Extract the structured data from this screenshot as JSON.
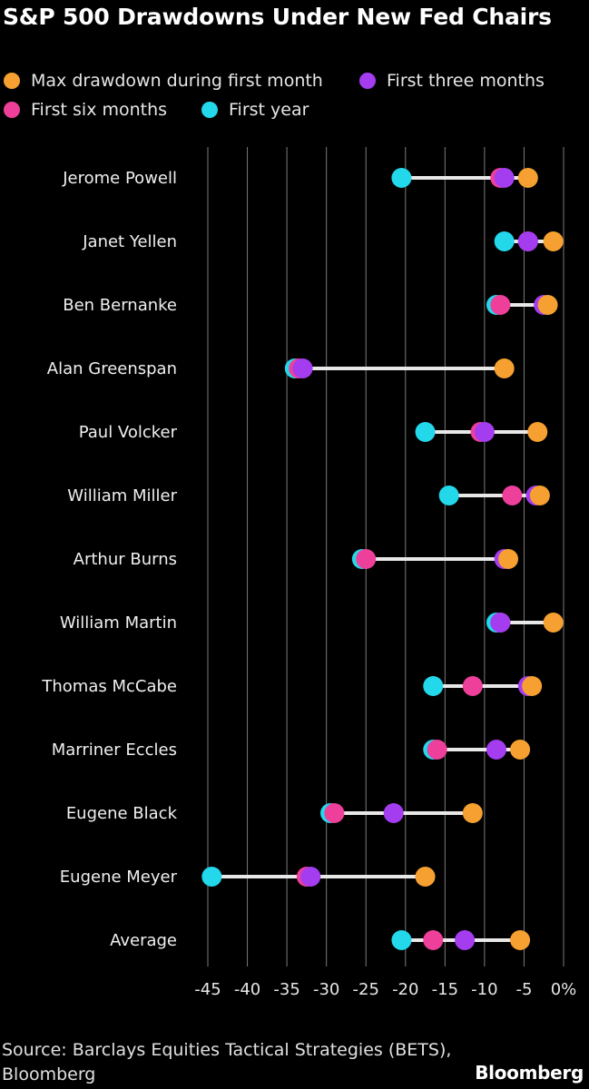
{
  "title": "S&P 500 Drawdowns Under New Fed Chairs",
  "legend": [
    {
      "label": "Max drawdown during first month",
      "color": "#f5a030"
    },
    {
      "label": "First three months",
      "color": "#a43cf0"
    },
    {
      "label": "First six months",
      "color": "#ee3f9a"
    },
    {
      "label": "First year",
      "color": "#22d8ea"
    }
  ],
  "source": "Source: Barclays Equities Tactical Strategies (BETS), Bloomberg",
  "brand": "Bloomberg",
  "chart_data": {
    "type": "dot-range",
    "title": "S&P 500 Drawdowns Under New Fed Chairs",
    "xlim": [
      -47,
      0
    ],
    "xticks": [
      -45,
      -40,
      -35,
      -30,
      -25,
      -20,
      -15,
      -10,
      -5,
      0
    ],
    "xtick_labels": [
      "-45",
      "-40",
      "-35",
      "-30",
      "-25",
      "-20",
      "-15",
      "-10",
      "-5",
      "0%"
    ],
    "grid": "vertical",
    "legend_position": "top",
    "categories": [
      "Jerome Powell",
      "Janet Yellen",
      "Ben Bernanke",
      "Alan Greenspan",
      "Paul Volcker",
      "William Miller",
      "Arthur Burns",
      "William Martin",
      "Thomas McCabe",
      "Marriner Eccles",
      "Eugene Black",
      "Eugene Meyer",
      "Average"
    ],
    "series": [
      {
        "name": "Max drawdown during first month",
        "color": "#f5a030",
        "values": [
          -4.5,
          -1.3,
          -2.0,
          -7.5,
          -3.3,
          -3.0,
          -7.0,
          -1.3,
          -4.0,
          -5.5,
          -11.5,
          -17.5,
          -5.5
        ]
      },
      {
        "name": "First three months",
        "color": "#a43cf0",
        "values": [
          -7.5,
          -4.5,
          -2.5,
          -33.0,
          -10.0,
          -3.5,
          -7.5,
          -8.0,
          -4.5,
          -8.5,
          -21.5,
          -32.0,
          -12.5
        ]
      },
      {
        "name": "First six months",
        "color": "#ee3f9a",
        "values": [
          -8.0,
          -4.5,
          -8.0,
          -33.5,
          -10.5,
          -6.5,
          -25.0,
          -8.0,
          -11.5,
          -16.0,
          -29.0,
          -32.5,
          -16.5
        ]
      },
      {
        "name": "First year",
        "color": "#22d8ea",
        "values": [
          -20.5,
          -7.5,
          -8.5,
          -34.0,
          -17.5,
          -14.5,
          -25.5,
          -8.5,
          -16.5,
          -16.5,
          -29.5,
          -44.5,
          -20.5
        ]
      }
    ]
  }
}
